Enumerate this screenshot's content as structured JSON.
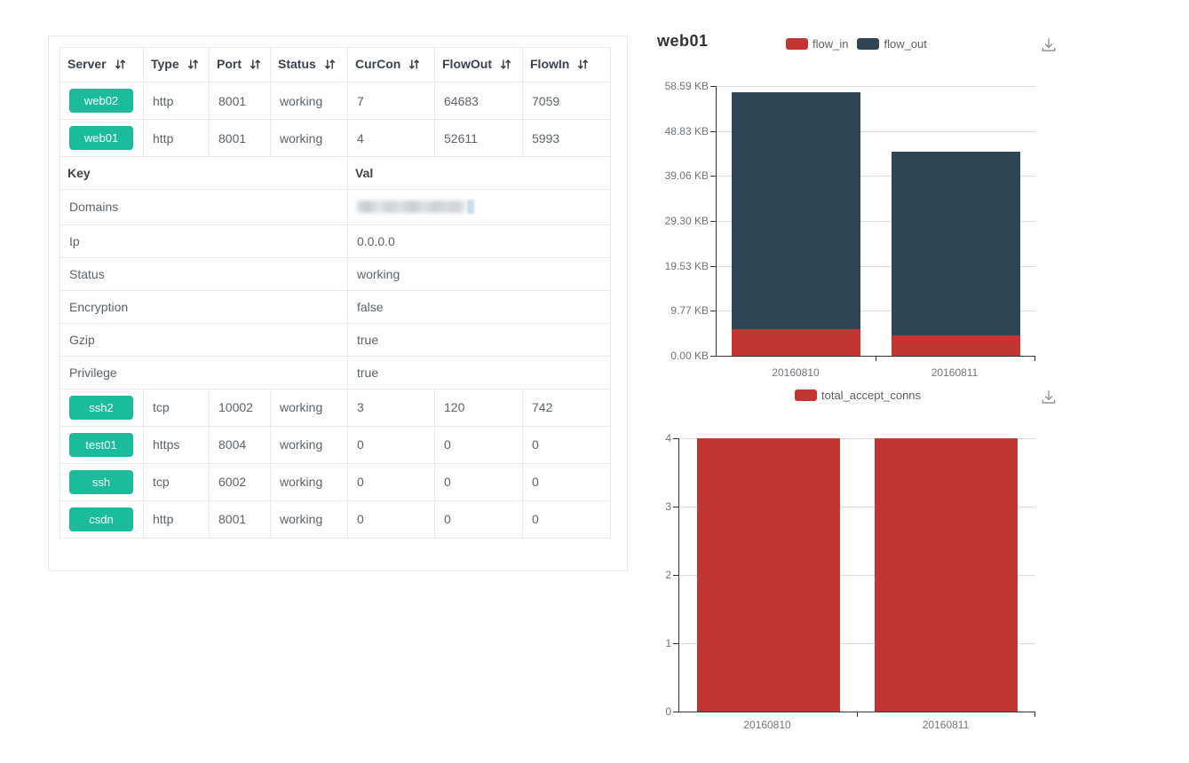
{
  "ui": {
    "colors": {
      "badge_green": "#1abc9c",
      "table_border": "#e7eaec",
      "flow_in_red": "#c23531",
      "flow_out_dark": "#2f4554"
    },
    "icons": {
      "sort": "sort-up-down-icon",
      "download": "download-icon"
    },
    "table": {
      "headers": [
        {
          "label": "Server",
          "sortable": true
        },
        {
          "label": "Type",
          "sortable": true
        },
        {
          "label": "Port",
          "sortable": true
        },
        {
          "label": "Status",
          "sortable": true
        },
        {
          "label": "CurCon",
          "sortable": true
        },
        {
          "label": "FlowOut",
          "sortable": true
        },
        {
          "label": "FlowIn",
          "sortable": true
        }
      ],
      "server_rows_top": [
        {
          "server": "web02",
          "type": "http",
          "port": "8001",
          "status": "working",
          "curcon": "7",
          "flowout": "64683",
          "flowin": "7059"
        },
        {
          "server": "web01",
          "type": "http",
          "port": "8001",
          "status": "working",
          "curcon": "4",
          "flowout": "52611",
          "flowin": "5993"
        }
      ],
      "detail": {
        "key_header": "Key",
        "val_header": "Val",
        "rows": [
          {
            "key": "Domains",
            "val": "",
            "redacted": true
          },
          {
            "key": "Ip",
            "val": "0.0.0.0"
          },
          {
            "key": "Status",
            "val": "working"
          },
          {
            "key": "Encryption",
            "val": "false"
          },
          {
            "key": "Gzip",
            "val": "true"
          },
          {
            "key": "Privilege",
            "val": "true"
          }
        ]
      },
      "server_rows_bottom": [
        {
          "server": "ssh2",
          "type": "tcp",
          "port": "10002",
          "status": "working",
          "curcon": "3",
          "flowout": "120",
          "flowin": "742"
        },
        {
          "server": "test01",
          "type": "https",
          "port": "8004",
          "status": "working",
          "curcon": "0",
          "flowout": "0",
          "flowin": "0"
        },
        {
          "server": "ssh",
          "type": "tcp",
          "port": "6002",
          "status": "working",
          "curcon": "0",
          "flowout": "0",
          "flowin": "0"
        },
        {
          "server": "csdn",
          "type": "http",
          "port": "8001",
          "status": "working",
          "curcon": "0",
          "flowout": "0",
          "flowin": "0"
        }
      ]
    }
  },
  "chart_data": [
    {
      "type": "bar",
      "stacked": true,
      "title": "web01",
      "categories": [
        "20160810",
        "20160811"
      ],
      "series": [
        {
          "name": "flow_in",
          "color": "#c23531",
          "values": [
            5993,
            4540
          ]
        },
        {
          "name": "flow_out",
          "color": "#2f4554",
          "values": [
            52611,
            40860
          ]
        }
      ],
      "ylim": [
        0,
        60000
      ],
      "ytick_labels": [
        "0.00 KB",
        "9.77 KB",
        "19.53 KB",
        "29.30 KB",
        "39.06 KB",
        "48.83 KB",
        "58.59 KB"
      ],
      "legend_position": "top-center",
      "grid": true,
      "has_download_button": true
    },
    {
      "type": "bar",
      "stacked": false,
      "title": "",
      "categories": [
        "20160810",
        "20160811"
      ],
      "series": [
        {
          "name": "total_accept_conns",
          "color": "#c23531",
          "values": [
            4,
            4
          ]
        }
      ],
      "ylim": [
        0,
        4
      ],
      "ytick_labels": [
        "0",
        "1",
        "2",
        "3",
        "4"
      ],
      "legend_position": "top-center",
      "grid": true,
      "has_download_button": true
    }
  ]
}
